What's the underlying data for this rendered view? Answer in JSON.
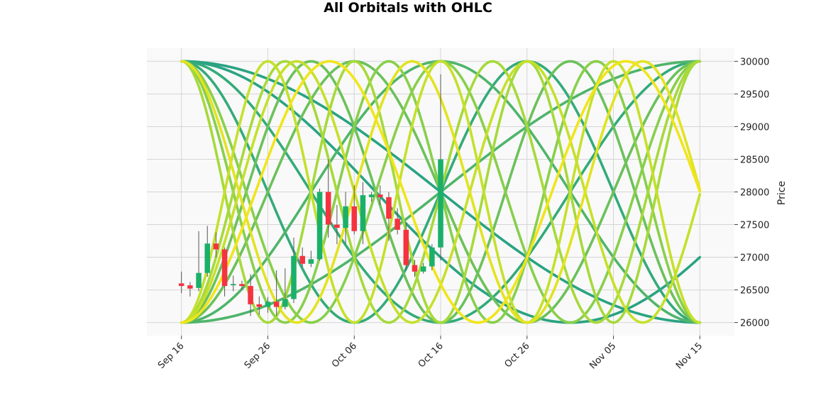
{
  "chart_data": {
    "type": "candlestick_with_lines",
    "title": "All Orbitals with OHLC",
    "ylabel": "Price",
    "ylim": [
      25800,
      30200
    ],
    "y_ticks": [
      26000,
      26500,
      27000,
      27500,
      28000,
      28500,
      29000,
      29500,
      30000
    ],
    "x_start": "2023-09-16",
    "x_end": "2023-11-15",
    "x_range": [
      "2023-09-12",
      "2023-11-19"
    ],
    "x_ticks": [
      {
        "label": "Sep 16",
        "date": "2023-09-16"
      },
      {
        "label": "Sep 26",
        "date": "2023-09-26"
      },
      {
        "label": "Oct 06",
        "date": "2023-10-06"
      },
      {
        "label": "Oct 16",
        "date": "2023-10-16"
      },
      {
        "label": "Oct 26",
        "date": "2023-10-26"
      },
      {
        "label": "Nov 05",
        "date": "2023-11-05"
      },
      {
        "label": "Nov 15",
        "date": "2023-11-15"
      }
    ],
    "grid": true,
    "colors": {
      "up": "#1bb06a",
      "down": "#f5333f",
      "wick": "#555555",
      "plot_bg": "#f9f9f9",
      "grid": "#d5d5d5"
    },
    "ohlc": [
      {
        "date": "2023-09-16",
        "o": 26600,
        "h": 26780,
        "l": 26450,
        "c": 26560
      },
      {
        "date": "2023-09-17",
        "o": 26570,
        "h": 26620,
        "l": 26400,
        "c": 26520
      },
      {
        "date": "2023-09-18",
        "o": 26530,
        "h": 27400,
        "l": 26480,
        "c": 26760
      },
      {
        "date": "2023-09-19",
        "o": 26760,
        "h": 27480,
        "l": 26700,
        "c": 27210
      },
      {
        "date": "2023-09-20",
        "o": 27210,
        "h": 27380,
        "l": 27000,
        "c": 27120
      },
      {
        "date": "2023-09-21",
        "o": 27120,
        "h": 27150,
        "l": 26400,
        "c": 26560
      },
      {
        "date": "2023-09-22",
        "o": 26570,
        "h": 26720,
        "l": 26480,
        "c": 26590
      },
      {
        "date": "2023-09-23",
        "o": 26590,
        "h": 26640,
        "l": 26500,
        "c": 26560
      },
      {
        "date": "2023-09-24",
        "o": 26560,
        "h": 26740,
        "l": 26100,
        "c": 26280
      },
      {
        "date": "2023-09-25",
        "o": 26280,
        "h": 26400,
        "l": 26120,
        "c": 26240
      },
      {
        "date": "2023-09-26",
        "o": 26240,
        "h": 26390,
        "l": 26150,
        "c": 26320
      },
      {
        "date": "2023-09-27",
        "o": 26320,
        "h": 26800,
        "l": 26100,
        "c": 26240
      },
      {
        "date": "2023-09-28",
        "o": 26240,
        "h": 26830,
        "l": 26200,
        "c": 26360
      },
      {
        "date": "2023-09-29",
        "o": 26360,
        "h": 27300,
        "l": 26300,
        "c": 27020
      },
      {
        "date": "2023-09-30",
        "o": 27020,
        "h": 27150,
        "l": 26850,
        "c": 26900
      },
      {
        "date": "2023-10-01",
        "o": 26900,
        "h": 27100,
        "l": 26850,
        "c": 26970
      },
      {
        "date": "2023-10-02",
        "o": 26970,
        "h": 28050,
        "l": 26950,
        "c": 28000
      },
      {
        "date": "2023-10-03",
        "o": 28000,
        "h": 28500,
        "l": 27300,
        "c": 27500
      },
      {
        "date": "2023-10-04",
        "o": 27500,
        "h": 27800,
        "l": 27200,
        "c": 27450
      },
      {
        "date": "2023-10-05",
        "o": 27450,
        "h": 28000,
        "l": 27200,
        "c": 27780
      },
      {
        "date": "2023-10-06",
        "o": 27780,
        "h": 28100,
        "l": 27350,
        "c": 27400
      },
      {
        "date": "2023-10-07",
        "o": 27400,
        "h": 28150,
        "l": 27200,
        "c": 27950
      },
      {
        "date": "2023-10-08",
        "o": 27920,
        "h": 28000,
        "l": 27850,
        "c": 27960
      },
      {
        "date": "2023-10-09",
        "o": 27960,
        "h": 28100,
        "l": 27800,
        "c": 27920
      },
      {
        "date": "2023-10-10",
        "o": 27920,
        "h": 28000,
        "l": 27250,
        "c": 27590
      },
      {
        "date": "2023-10-11",
        "o": 27590,
        "h": 27750,
        "l": 27350,
        "c": 27420
      },
      {
        "date": "2023-10-12",
        "o": 27420,
        "h": 27520,
        "l": 26800,
        "c": 26880
      },
      {
        "date": "2023-10-13",
        "o": 26880,
        "h": 26960,
        "l": 26700,
        "c": 26780
      },
      {
        "date": "2023-10-14",
        "o": 26780,
        "h": 26910,
        "l": 26750,
        "c": 26860
      },
      {
        "date": "2023-10-15",
        "o": 26860,
        "h": 27200,
        "l": 26800,
        "c": 27150
      },
      {
        "date": "2023-10-16",
        "o": 27150,
        "h": 29800,
        "l": 26950,
        "c": 28500
      }
    ],
    "orbitals": [
      {
        "color": "#2aa382",
        "period_days": 120,
        "phase": 0
      },
      {
        "color": "#2aa382",
        "period_days": 90,
        "phase": 0
      },
      {
        "color": "#34ab7a",
        "period_days": 60,
        "phase": 0
      },
      {
        "color": "#34ab7a",
        "period_days": 40,
        "phase": 0
      },
      {
        "color": "#4fb56a",
        "period_days": 120,
        "phase": 3.14159
      },
      {
        "color": "#4fb56a",
        "period_days": 60,
        "phase": 3.14159
      },
      {
        "color": "#6cc15a",
        "period_days": 40,
        "phase": 3.14159
      },
      {
        "color": "#6cc15a",
        "period_days": 30,
        "phase": 3.14159
      },
      {
        "color": "#88cf4b",
        "period_days": 30,
        "phase": 0
      },
      {
        "color": "#88cf4b",
        "period_days": 24,
        "phase": 0
      },
      {
        "color": "#a6d93a",
        "period_days": 24,
        "phase": 3.14159
      },
      {
        "color": "#a6d93a",
        "period_days": 20,
        "phase": 0
      },
      {
        "color": "#c5e02b",
        "period_days": 20,
        "phase": 3.14159
      },
      {
        "color": "#c5e02b",
        "period_days": 26.7,
        "phase": 3.14159
      },
      {
        "color": "#e2e321",
        "period_days": 26.7,
        "phase": 0
      },
      {
        "color": "#f0e51c",
        "period_days": 34.3,
        "phase": 3.14159
      }
    ]
  }
}
